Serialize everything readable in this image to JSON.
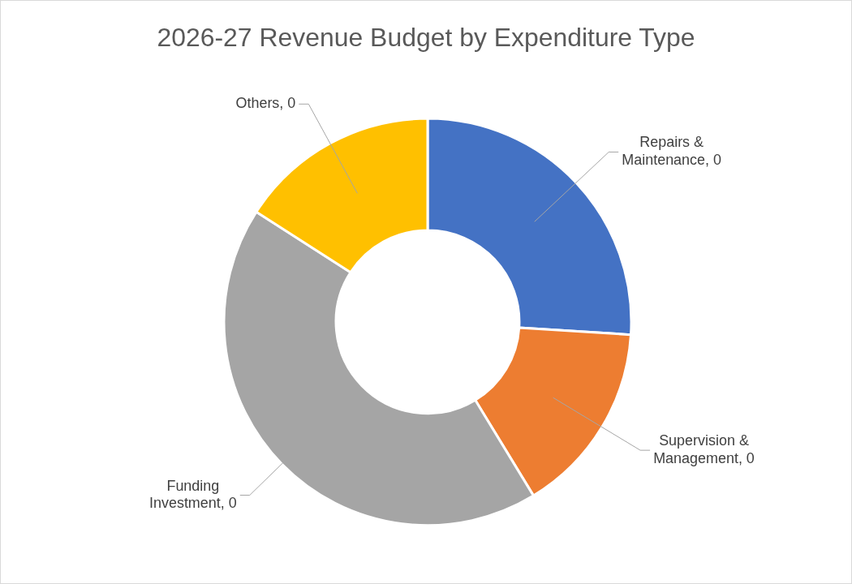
{
  "chart_data": {
    "type": "donut",
    "title": "2026-27 Revenue Budget by Expenditure Type",
    "categories": [
      "Repairs & Maintenance, 0",
      "Supervision & Management, 0",
      "Funding Investment, 0",
      "Others, 0"
    ],
    "values": [
      26,
      15.3,
      42.8,
      15.9
    ],
    "colors": [
      "#4472c4",
      "#ed7d31",
      "#a5a5a5",
      "#ffc000"
    ]
  }
}
